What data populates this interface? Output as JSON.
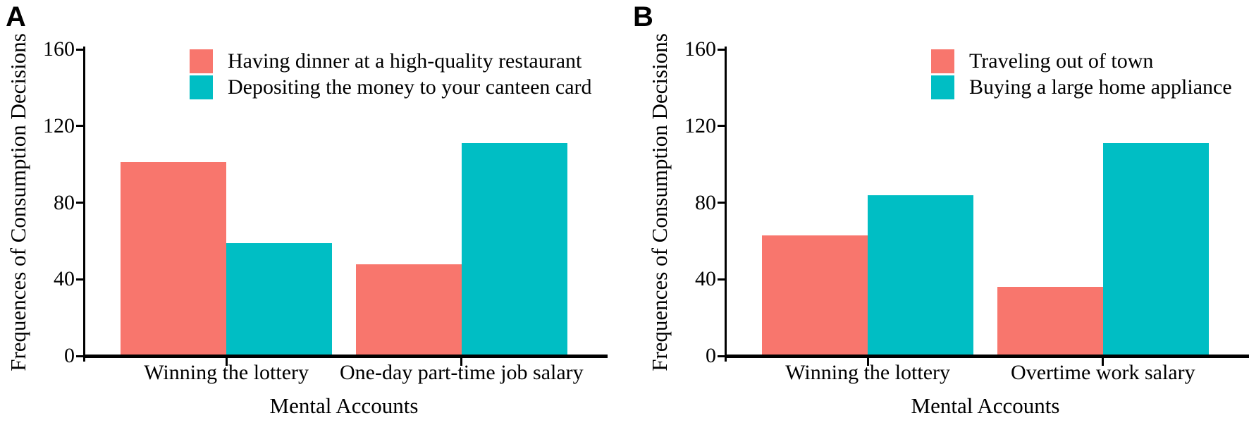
{
  "figure": {
    "panel_letters": [
      "A",
      "B"
    ],
    "colors": {
      "series1": "#F8766D",
      "series2": "#00BEC4",
      "axis": "#000000",
      "background": "#ffffff"
    }
  },
  "chart_data": [
    {
      "type": "bar",
      "panel": "A",
      "categories": [
        "Winning the lottery",
        "One-day part-time job salary"
      ],
      "series": [
        {
          "name": "Having dinner at a high-quality restaurant",
          "color": "#F8766D",
          "values": [
            101,
            48
          ]
        },
        {
          "name": "Depositing the money to your canteen card",
          "color": "#00BEC4",
          "values": [
            59,
            111
          ]
        }
      ],
      "xlabel": "Mental Accounts",
      "ylabel": "Frequences of Consumption Decisions",
      "ylim": [
        0,
        160
      ],
      "yticks": [
        0,
        40,
        80,
        120,
        160
      ],
      "grid": false,
      "legend_position": "top-inside"
    },
    {
      "type": "bar",
      "panel": "B",
      "categories": [
        "Winning the lottery",
        "Overtime work salary"
      ],
      "series": [
        {
          "name": "Traveling out of town",
          "color": "#F8766D",
          "values": [
            63,
            36
          ]
        },
        {
          "name": "Buying a large home appliance",
          "color": "#00BEC4",
          "values": [
            84,
            111
          ]
        }
      ],
      "xlabel": "Mental Accounts",
      "ylabel": "Frequences of Consumption Decisions",
      "ylim": [
        0,
        160
      ],
      "yticks": [
        0,
        40,
        80,
        120,
        160
      ],
      "grid": false,
      "legend_position": "top-inside"
    }
  ]
}
